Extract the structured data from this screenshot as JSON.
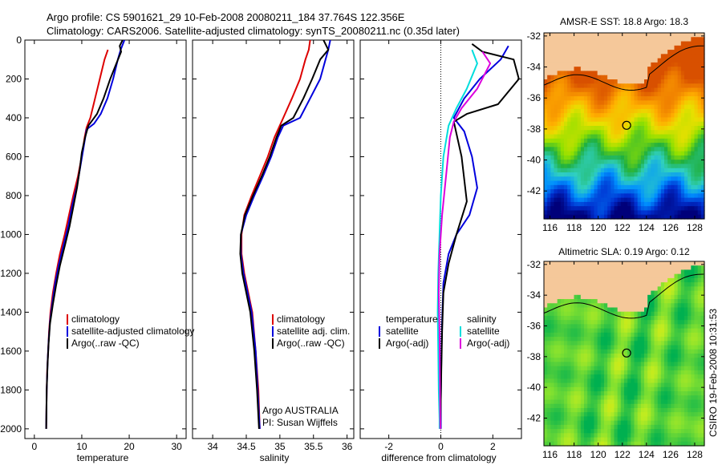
{
  "header": {
    "line1": "Argo profile: CS 5901621_29 10-Feb-2008 20080211_184 37.764S 122.356E",
    "line2": "Climatology: CARS2006. Satellite-adjusted climatology: synTS_20080211.nc (0.35d later)"
  },
  "side_stamp": "CSIRO 19-Feb-2008 10:31:53",
  "colors": {
    "climatology": "#dd0000",
    "satellite": "#0000dd",
    "argo": "#000000",
    "sal_satellite": "#00dddd",
    "sal_argo": "#dd00dd",
    "land": "#f5c89a"
  },
  "chart_data": [
    {
      "type": "line",
      "panel": "temperature",
      "xlabel": "temperature",
      "xlim": [
        -2,
        32
      ],
      "ylim": [
        0,
        2050
      ],
      "y_reversed": true,
      "xticks": [
        0,
        10,
        20,
        30
      ],
      "yticks": [
        0,
        200,
        400,
        600,
        800,
        1000,
        1200,
        1400,
        1600,
        1800,
        2000
      ],
      "legend": [
        "climatology",
        "satellite-adjusted climatology",
        "Argo(..raw -QC)"
      ],
      "series": [
        {
          "name": "climatology",
          "color": "#dd0000",
          "x": [
            15.5,
            14.8,
            13.8,
            12.8,
            11.8,
            11.0,
            10.6,
            10.0,
            9.2,
            8.2,
            7.3,
            6.4,
            5.4,
            4.6,
            3.9,
            3.4,
            3.1,
            2.9,
            2.7,
            2.6,
            2.5
          ],
          "y": [
            50,
            100,
            200,
            300,
            400,
            450,
            500,
            600,
            700,
            800,
            900,
            1000,
            1100,
            1200,
            1300,
            1400,
            1500,
            1600,
            1700,
            1800,
            2000
          ]
        },
        {
          "name": "satellite-adjusted climatology",
          "color": "#0000dd",
          "x": [
            19.0,
            18.2,
            17.6,
            16.6,
            15.4,
            14.0,
            12.6,
            11.0,
            10.4,
            9.7,
            9.0,
            8.0,
            7.2,
            6.2,
            5.2,
            4.4,
            3.8,
            3.3,
            3.0,
            2.8,
            2.6,
            2.5
          ],
          "y": [
            0,
            50,
            100,
            200,
            300,
            380,
            430,
            460,
            550,
            650,
            750,
            850,
            950,
            1050,
            1150,
            1250,
            1350,
            1450,
            1550,
            1650,
            1800,
            2000
          ]
        },
        {
          "name": "Argo(..raw -QC)",
          "color": "#000000",
          "x": [
            18.6,
            18.0,
            18.3,
            17.3,
            16.0,
            14.6,
            13.2,
            11.4,
            10.7,
            10.0,
            9.6,
            9.0,
            8.2,
            7.4,
            6.4,
            5.4,
            4.6,
            3.9,
            3.3,
            3.0,
            2.8,
            2.6,
            2.5
          ],
          "y": [
            0,
            30,
            60,
            120,
            200,
            300,
            380,
            440,
            500,
            580,
            660,
            760,
            860,
            960,
            1060,
            1160,
            1260,
            1360,
            1460,
            1560,
            1660,
            1800,
            2000
          ]
        }
      ]
    },
    {
      "type": "line",
      "panel": "salinity",
      "xlabel": "salinity",
      "xlim": [
        33.7,
        36.1
      ],
      "ylim": [
        0,
        2050
      ],
      "y_reversed": true,
      "xticks": [
        34,
        34.5,
        35,
        35.5,
        36
      ],
      "legend": [
        "climatology",
        "satellite adj. clim.",
        "Argo(..raw -QC)"
      ],
      "annotation": [
        "Argo AUSTRALIA",
        "PI: Susan Wijffels"
      ],
      "series": [
        {
          "name": "climatology",
          "color": "#dd0000",
          "x": [
            35.45,
            35.43,
            35.38,
            35.3,
            35.18,
            35.05,
            34.92,
            34.82,
            34.7,
            34.58,
            34.47,
            34.43,
            34.43,
            34.47,
            34.53,
            34.59,
            34.64,
            34.68,
            34.7
          ],
          "y": [
            0,
            50,
            100,
            200,
            300,
            400,
            500,
            600,
            700,
            800,
            900,
            1000,
            1100,
            1200,
            1300,
            1400,
            1600,
            1800,
            2000
          ]
        },
        {
          "name": "satellite adj. clim.",
          "color": "#0000dd",
          "x": [
            35.75,
            35.72,
            35.68,
            35.6,
            35.45,
            35.3,
            35.05,
            34.97,
            34.87,
            34.75,
            34.62,
            34.5,
            34.42,
            34.42,
            34.46,
            34.52,
            34.58,
            34.64,
            34.67,
            34.7
          ],
          "y": [
            0,
            50,
            100,
            200,
            300,
            400,
            440,
            500,
            600,
            700,
            800,
            900,
            1000,
            1100,
            1200,
            1300,
            1400,
            1600,
            1800,
            2000
          ]
        },
        {
          "name": "Argo(..raw -QC)",
          "color": "#000000",
          "x": [
            35.65,
            35.72,
            35.6,
            35.48,
            35.35,
            35.2,
            35.02,
            34.95,
            34.85,
            34.73,
            34.6,
            34.48,
            34.42,
            34.41,
            34.44,
            34.5,
            34.56,
            34.62,
            34.66,
            34.69
          ],
          "y": [
            0,
            50,
            100,
            200,
            300,
            400,
            440,
            500,
            600,
            700,
            800,
            900,
            1000,
            1100,
            1200,
            1300,
            1400,
            1600,
            1800,
            2000
          ]
        }
      ]
    },
    {
      "type": "line",
      "panel": "difference",
      "xlabel": "difference from climatology",
      "xlim": [
        -3.1,
        3.1
      ],
      "ylim": [
        0,
        2050
      ],
      "y_reversed": true,
      "xticks": [
        -2,
        0,
        2
      ],
      "legend_left_title": "temperature",
      "legend_right_title": "salinity",
      "legend": [
        "satellite",
        "Argo(-adj)",
        "satellite",
        "Argo(-adj)"
      ],
      "series": [
        {
          "name": "satellite",
          "quantity": "temperature",
          "color": "#0000dd",
          "x": [
            2.6,
            2.3,
            1.5,
            0.9,
            0.5,
            0.9,
            1.2,
            1.4,
            1.1,
            0.6,
            0.3,
            0.1,
            0.05,
            0.02,
            0,
            0
          ],
          "y": [
            30,
            100,
            200,
            300,
            400,
            470,
            600,
            760,
            900,
            1000,
            1100,
            1250,
            1450,
            1650,
            1850,
            2000
          ]
        },
        {
          "name": "Argo(-adj)",
          "quantity": "temperature",
          "color": "#000000",
          "x": [
            1.2,
            1.6,
            2.8,
            3.0,
            2.2,
            1.0,
            0.5,
            0.8,
            1.0,
            0.6,
            0.3,
            0.1,
            0.05,
            0.02,
            0.0,
            -0.02
          ],
          "y": [
            20,
            60,
            100,
            200,
            330,
            380,
            420,
            600,
            830,
            1000,
            1150,
            1300,
            1500,
            1700,
            1850,
            2000
          ]
        },
        {
          "name": "satellite",
          "quantity": "salinity",
          "color": "#00dddd",
          "x": [
            1.2,
            1.4,
            1.0,
            0.6,
            0.3,
            0.1,
            0.0,
            -0.05,
            -0.1,
            -0.12,
            -0.1,
            -0.08,
            -0.05,
            -0.05
          ],
          "y": [
            50,
            120,
            250,
            350,
            440,
            600,
            800,
            1000,
            1200,
            1400,
            1600,
            1800,
            1950,
            2000
          ]
        },
        {
          "name": "Argo(-adj)",
          "quantity": "salinity",
          "color": "#dd00dd",
          "x": [
            1.6,
            1.9,
            1.4,
            0.8,
            0.5,
            0.35,
            0.2,
            0.05,
            -0.05,
            -0.08,
            -0.05,
            -0.03,
            -0.02
          ],
          "y": [
            60,
            120,
            250,
            350,
            420,
            500,
            700,
            900,
            1100,
            1300,
            1500,
            1800,
            2000
          ]
        }
      ]
    },
    {
      "type": "heatmap",
      "panel": "sst_map",
      "title": "AMSR-E SST: 18.8  Argo: 18.3",
      "xlim": [
        115.5,
        128.8
      ],
      "ylim": [
        -43.8,
        -31.8
      ],
      "xticks": [
        116,
        118,
        120,
        122,
        124,
        126,
        128
      ],
      "yticks": [
        -32,
        -34,
        -36,
        -38,
        -40,
        -42
      ],
      "marker": {
        "lon": 122.356,
        "lat": -37.764
      },
      "colorscale": [
        "#00007a",
        "#0030d0",
        "#0090ff",
        "#30d0c0",
        "#20b040",
        "#90e000",
        "#e8e000",
        "#ffb000",
        "#f08000",
        "#d85000"
      ]
    },
    {
      "type": "heatmap",
      "panel": "sla_map",
      "title": "Altimetric SLA: 0.19  Argo: 0.12",
      "xlim": [
        115.5,
        128.8
      ],
      "ylim": [
        -43.8,
        -31.8
      ],
      "xticks": [
        116,
        118,
        120,
        122,
        124,
        126,
        128
      ],
      "yticks": [
        -32,
        -34,
        -36,
        -38,
        -40,
        -42
      ],
      "marker": {
        "lon": 122.356,
        "lat": -37.764
      },
      "colorscale": [
        "#00b050",
        "#40c840",
        "#80e030",
        "#c0ec20",
        "#f0e000",
        "#ffc000"
      ]
    }
  ]
}
